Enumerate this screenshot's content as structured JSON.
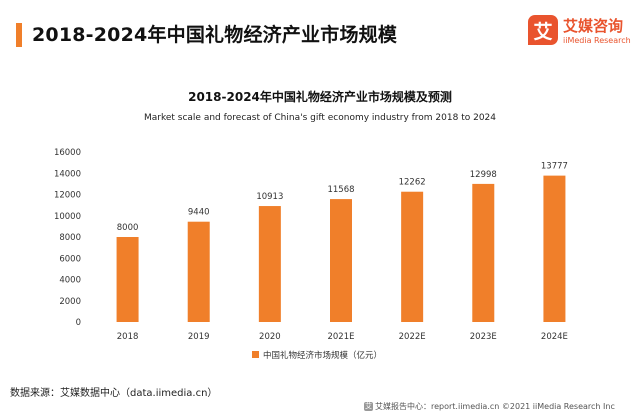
{
  "page": {
    "title": "2018-2024年中国礼物经济产业市场规模",
    "accent_color": "#f07f2a"
  },
  "logo": {
    "mark": "艾",
    "cn": "艾媒咨询",
    "en": "iiMedia Research",
    "color": "#e9542e"
  },
  "chart_data": {
    "type": "bar",
    "title": "2018-2024年中国礼物经济产业市场规模及预测",
    "subtitle": "Market scale and forecast of China's gift economy industry from 2018 to 2024",
    "categories": [
      "2018",
      "2019",
      "2020",
      "2021E",
      "2022E",
      "2023E",
      "2024E"
    ],
    "series": [
      {
        "name": "中国礼物经济市场规模（亿元）",
        "values": [
          8000,
          9440,
          10913,
          11568,
          12262,
          12998,
          13777
        ],
        "color": "#f07f2a"
      }
    ],
    "y_ticks": [
      "0",
      "2000",
      "4000",
      "6000",
      "8000",
      "10000",
      "12000",
      "14000",
      "16000"
    ],
    "ylim": [
      0,
      16000
    ],
    "grid": false,
    "legend_position": "bottom"
  },
  "footer": {
    "source": "数据来源：艾媒数据中心（data.iimedia.cn）",
    "icon": "艾",
    "right": "艾媒报告中心：report.iimedia.cn ©2021 iiMedia Research Inc"
  }
}
